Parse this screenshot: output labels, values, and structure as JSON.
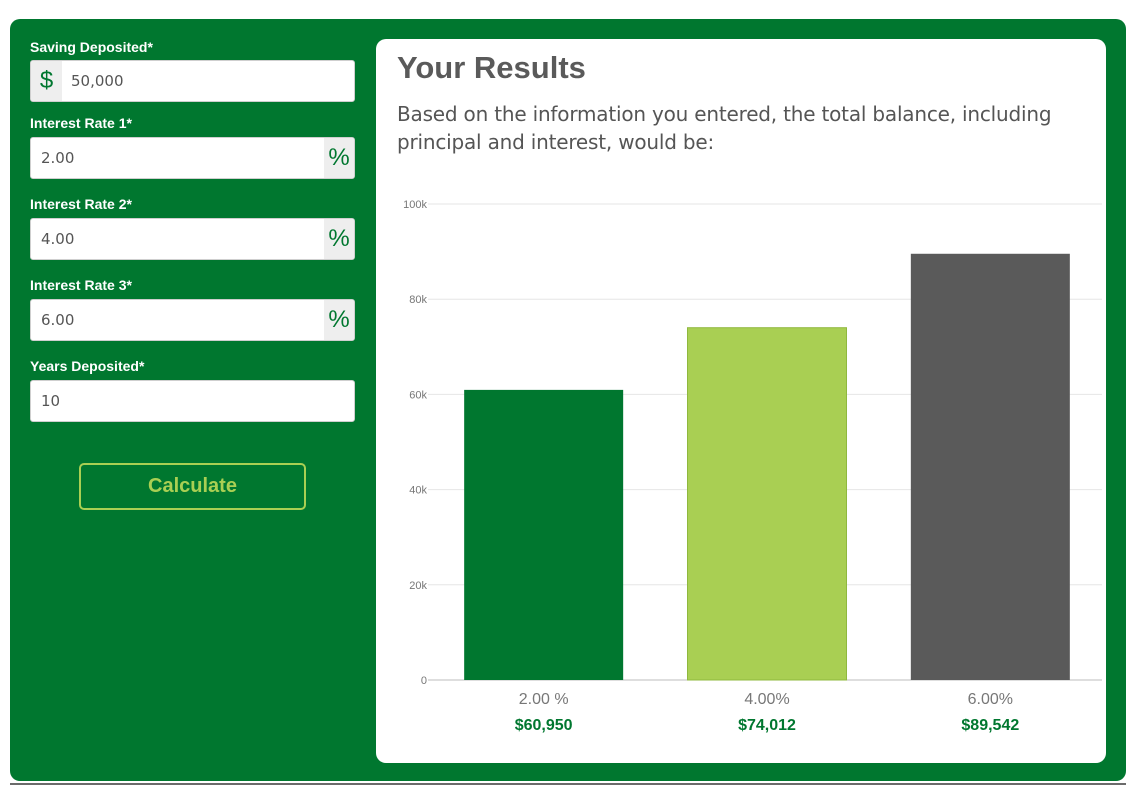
{
  "form": {
    "saving": {
      "label": "Saving Deposited*",
      "prefix": "$",
      "value": "50,000"
    },
    "rate1": {
      "label": "Interest Rate 1*",
      "suffix": "%",
      "value": "2.00"
    },
    "rate2": {
      "label": "Interest Rate 2*",
      "suffix": "%",
      "value": "4.00"
    },
    "rate3": {
      "label": "Interest Rate 3*",
      "suffix": "%",
      "value": "6.00"
    },
    "years": {
      "label": "Years Deposited*",
      "value": "10"
    },
    "calculate_label": "Calculate"
  },
  "results": {
    "title": "Your Results",
    "description": "Based on the information you entered, the total balance, including principal and interest, would be:"
  },
  "colors": {
    "brand_green": "#00772f",
    "light_green": "#a9cf53",
    "dark_gray": "#5a5a5a"
  },
  "chart_data": {
    "type": "bar",
    "categories": [
      "2.00 %",
      "4.00%",
      "6.00%"
    ],
    "values": [
      60950,
      74012,
      89542
    ],
    "value_labels": [
      "$60,950",
      "$74,012",
      "$89,542"
    ],
    "bar_colors": [
      "#00772f",
      "#a9cf53",
      "#5a5a5a"
    ],
    "ylim": [
      0,
      100000
    ],
    "yticks": [
      0,
      20000,
      40000,
      60000,
      80000,
      100000
    ],
    "ytick_labels": [
      "0",
      "20k",
      "40k",
      "60k",
      "80k",
      "100k"
    ],
    "grid": true
  }
}
